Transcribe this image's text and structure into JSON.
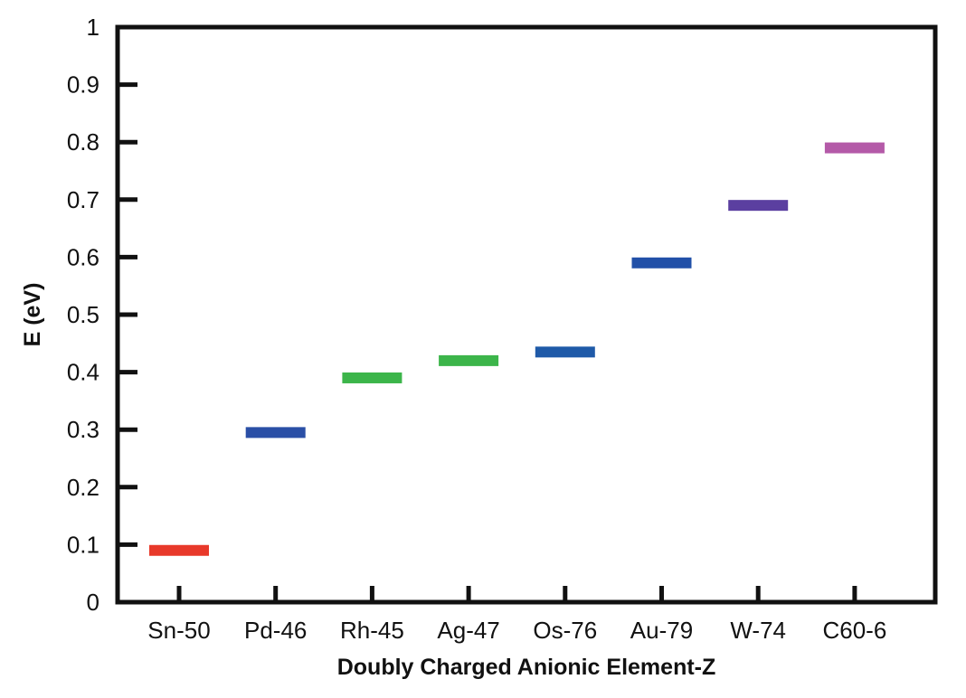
{
  "chart_data": {
    "type": "bar",
    "title": "",
    "xlabel": "Doubly Charged Anionic Element-Z",
    "ylabel": "E (eV)",
    "ylim": [
      0,
      1
    ],
    "yticks": [
      "0",
      "0.1",
      "0.2",
      "0.3",
      "0.4",
      "0.5",
      "0.6",
      "0.7",
      "0.8",
      "0.9",
      "1"
    ],
    "categories": [
      "Sn-50",
      "Pd-46",
      "Rh-45",
      "Ag-47",
      "Os-76",
      "Au-79",
      "W-74",
      "C60-6"
    ],
    "values": [
      0.09,
      0.295,
      0.39,
      0.42,
      0.435,
      0.59,
      0.69,
      0.79
    ],
    "colors": [
      "#e8392a",
      "#2a4fa6",
      "#3cb54a",
      "#3cb54a",
      "#1f5aa8",
      "#2150a8",
      "#5b3fa0",
      "#b45aa8"
    ],
    "grid": false,
    "legend": "none"
  }
}
